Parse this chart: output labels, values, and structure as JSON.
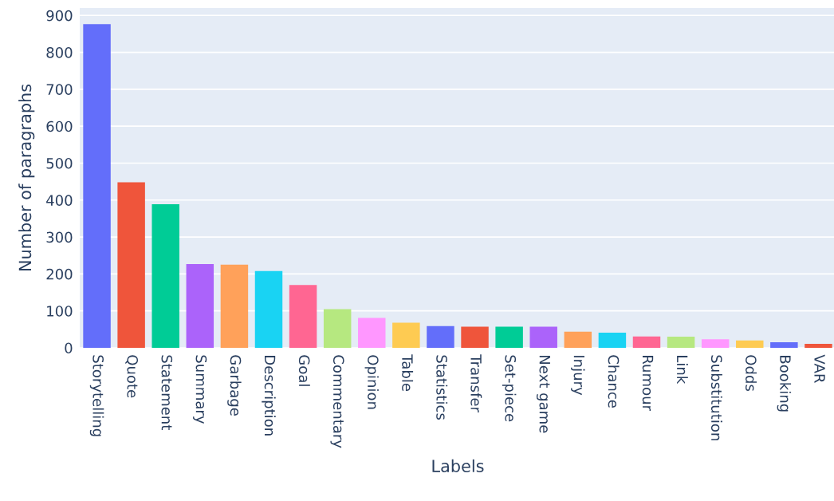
{
  "chart_data": {
    "type": "bar",
    "xlabel": "Labels",
    "ylabel": "Number of paragraphs",
    "categories": [
      "Storytelling",
      "Quote",
      "Statement",
      "Summary",
      "Garbage",
      "Description",
      "Goal",
      "Commentary",
      "Opinion",
      "Table",
      "Statistics",
      "Transfer",
      "Set-piece",
      "Next game",
      "Injury",
      "Chance",
      "Rumour",
      "Link",
      "Substitution",
      "Odds",
      "Booking",
      "VAR"
    ],
    "values": [
      876,
      448,
      389,
      227,
      225,
      208,
      170,
      105,
      81,
      68,
      59,
      57,
      57,
      57,
      44,
      41,
      31,
      30,
      23,
      20,
      15,
      11
    ],
    "colors": [
      "#636efa",
      "#ef553b",
      "#00cc96",
      "#ab63fa",
      "#ffa15a",
      "#19d3f3",
      "#ff6692",
      "#b6e880",
      "#ff97ff",
      "#fecb52",
      "#636efa",
      "#ef553b",
      "#00cc96",
      "#ab63fa",
      "#ffa15a",
      "#19d3f3",
      "#ff6692",
      "#b6e880",
      "#ff97ff",
      "#fecb52",
      "#636efa",
      "#ef553b"
    ],
    "ylim": [
      0,
      920
    ],
    "yticks": [
      0,
      100,
      200,
      300,
      400,
      500,
      600,
      700,
      800,
      900
    ],
    "grid": "y",
    "legend": false
  }
}
